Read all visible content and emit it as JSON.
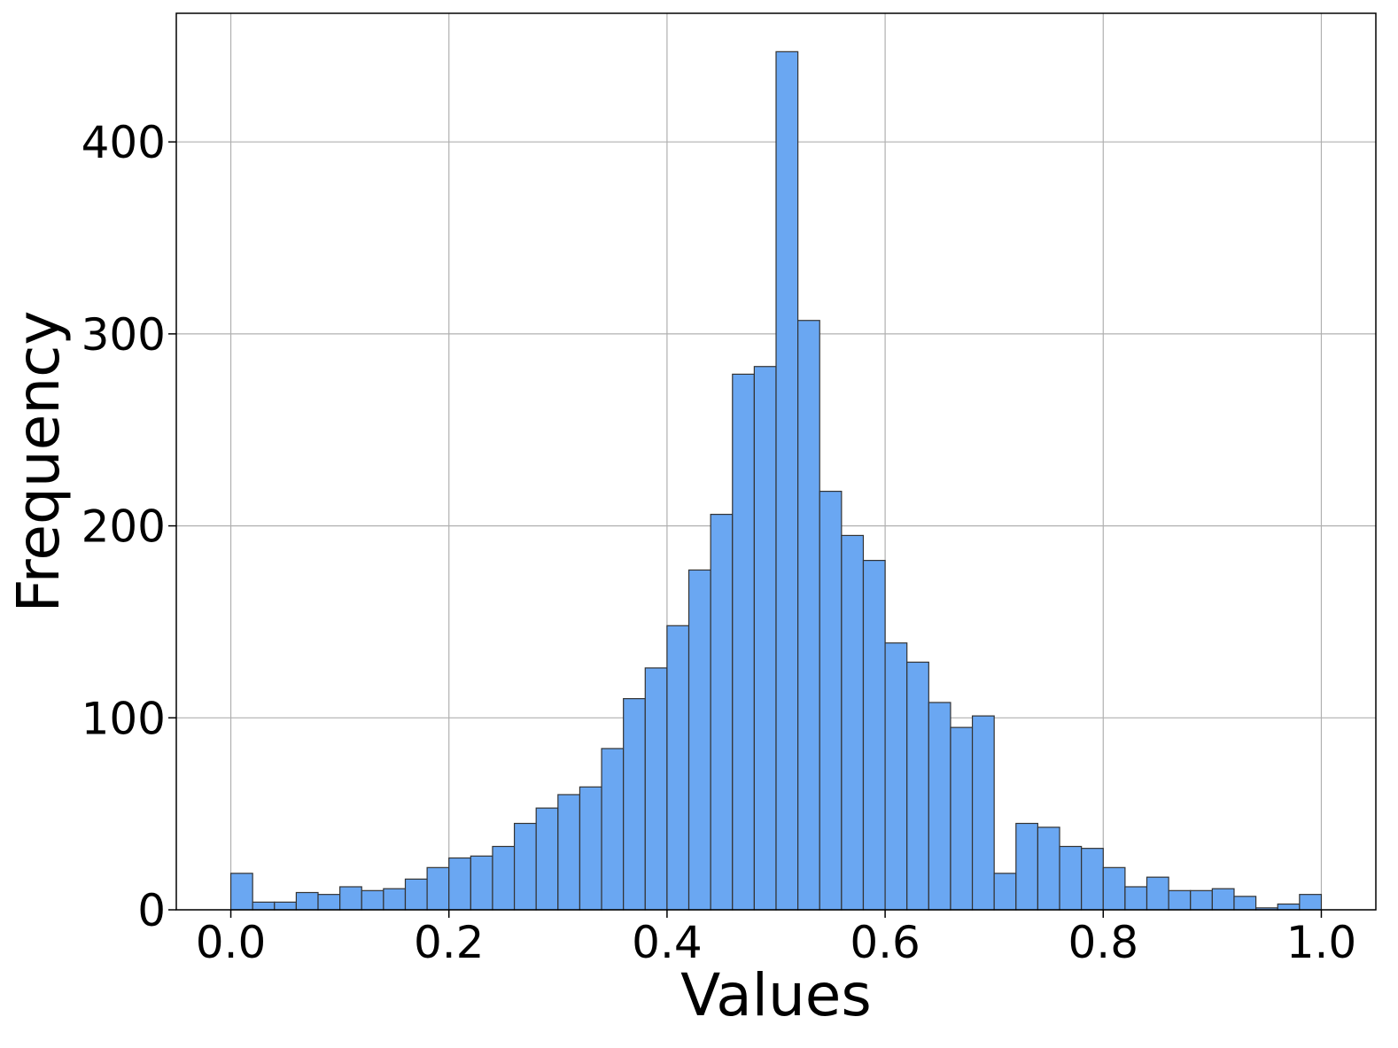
{
  "chart_data": {
    "type": "bar",
    "title": "",
    "xlabel": "Values",
    "ylabel": "Frequency",
    "xlim": [
      -0.05,
      1.05
    ],
    "ylim": [
      0,
      467
    ],
    "grid": true,
    "bar_color": "#6aa7f2",
    "edge_color": "#333333",
    "x_ticks": [
      0.0,
      0.2,
      0.4,
      0.6,
      0.8,
      1.0
    ],
    "x_tick_labels": [
      "0.0",
      "0.2",
      "0.4",
      "0.6",
      "0.8",
      "1.0"
    ],
    "y_ticks": [
      0,
      100,
      200,
      300,
      400
    ],
    "y_tick_labels": [
      "0",
      "100",
      "200",
      "300",
      "400"
    ],
    "bin_width": 0.02,
    "bin_starts": [
      0.0,
      0.02,
      0.04,
      0.06,
      0.08,
      0.1,
      0.12,
      0.14,
      0.16,
      0.18,
      0.2,
      0.22,
      0.24,
      0.26,
      0.28,
      0.3,
      0.32,
      0.34,
      0.36,
      0.38,
      0.4,
      0.42,
      0.44,
      0.46,
      0.48,
      0.5,
      0.52,
      0.54,
      0.56,
      0.58,
      0.6,
      0.62,
      0.64,
      0.66,
      0.68,
      0.7,
      0.72,
      0.74,
      0.76,
      0.78,
      0.8,
      0.82,
      0.84,
      0.86,
      0.88,
      0.9,
      0.92,
      0.94,
      0.96,
      0.98
    ],
    "values": [
      19,
      4,
      4,
      9,
      8,
      12,
      10,
      11,
      16,
      22,
      27,
      28,
      33,
      45,
      53,
      60,
      64,
      84,
      110,
      126,
      148,
      177,
      206,
      279,
      283,
      447,
      307,
      218,
      195,
      182,
      139,
      129,
      108,
      95,
      101,
      19,
      45,
      43,
      33,
      32,
      22,
      12,
      17,
      10,
      10,
      11,
      7,
      1,
      3,
      8
    ]
  }
}
